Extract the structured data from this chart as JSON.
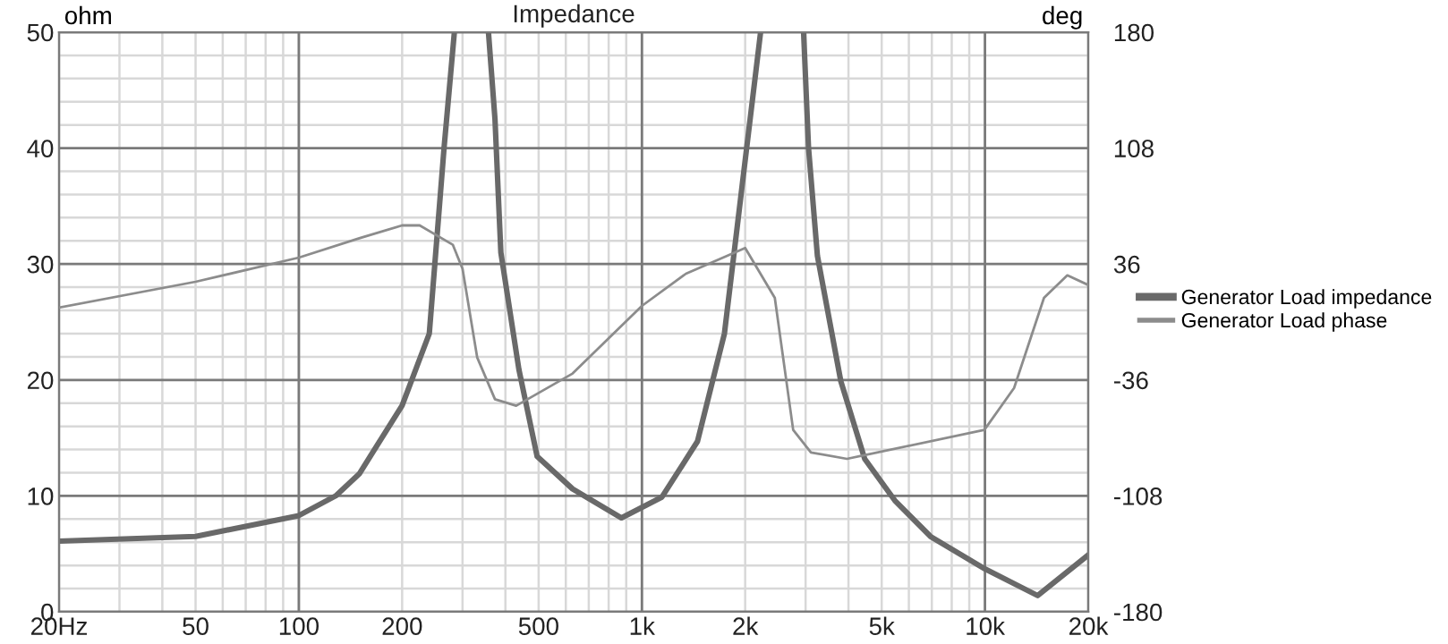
{
  "chart_data": {
    "type": "line",
    "title": "Impedance",
    "ylabel": "ohm",
    "y2label": "deg",
    "log": "x",
    "grid": true,
    "legend": "right",
    "xlim": [
      20,
      20000
    ],
    "xticks": [
      {
        "value": 20,
        "label": "20Hz"
      },
      50,
      100,
      200,
      500,
      {
        "value": 1000,
        "label": "1k"
      },
      {
        "value": 2000,
        "label": "2k"
      },
      {
        "value": 5000,
        "label": "5k"
      },
      {
        "value": 10000,
        "label": "10k"
      },
      {
        "value": 20000,
        "label": "20k"
      }
    ],
    "ylim": [
      0,
      50
    ],
    "yticks": [
      0,
      10,
      20,
      30,
      40,
      50
    ],
    "y2lim": [
      -180,
      180
    ],
    "y2ticks": [
      -180,
      -108,
      -36,
      36,
      108,
      180
    ],
    "series": [
      {
        "name": "Generator Load impedance",
        "color": "#696969",
        "x": [
          20,
          50,
          100,
          128,
          150,
          200,
          240,
          265,
          284,
          320,
          357,
          373,
          388,
          438,
          495,
          628,
          872,
          1144,
          1452,
          1740,
          1964,
          2218,
          2600,
          2960,
          3060,
          3248,
          3800,
          4460,
          5460,
          6940,
          10000,
          14240,
          20000
        ],
        "values": [
          6.1,
          6.5,
          8.3,
          10,
          11.9,
          17.8,
          24,
          40,
          50,
          null,
          50,
          42.5,
          31,
          20.9,
          13.4,
          10.6,
          8.1,
          9.9,
          14.7,
          24,
          37,
          50,
          null,
          50,
          40,
          30.7,
          19.9,
          13.2,
          9.6,
          6.5,
          3.7,
          1.4,
          4.9
        ]
      },
      {
        "name": "Generator Load phase",
        "color": "#8c8c8c",
        "axis": "y2",
        "x": [
          20,
          50,
          100,
          150,
          200,
          225,
          281,
          300,
          331,
          373,
          430,
          628,
          1000,
          1344,
          2000,
          2440,
          2760,
          3110,
          3960,
          9960,
          12160,
          14860,
          17380,
          20000
        ],
        "values": [
          9,
          25,
          40,
          52,
          60,
          60,
          48,
          33,
          -22,
          -48,
          -52,
          -32,
          10,
          30,
          46,
          15,
          -67,
          -81,
          -85,
          -67,
          -41,
          15,
          29,
          23
        ]
      }
    ]
  }
}
